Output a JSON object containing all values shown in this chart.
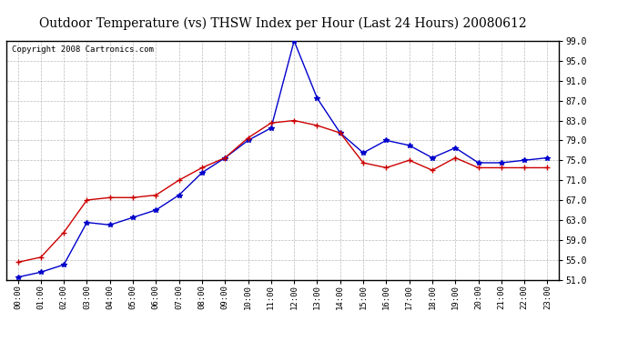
{
  "title": "Outdoor Temperature (vs) THSW Index per Hour (Last 24 Hours) 20080612",
  "copyright": "Copyright 2008 Cartronics.com",
  "hours": [
    "00:00",
    "01:00",
    "02:00",
    "03:00",
    "04:00",
    "05:00",
    "06:00",
    "07:00",
    "08:00",
    "09:00",
    "10:00",
    "11:00",
    "12:00",
    "13:00",
    "14:00",
    "15:00",
    "16:00",
    "17:00",
    "18:00",
    "19:00",
    "20:00",
    "21:00",
    "22:00",
    "23:00"
  ],
  "blue_data": [
    51.5,
    52.5,
    54.0,
    62.5,
    62.0,
    63.5,
    65.0,
    68.0,
    72.5,
    75.5,
    79.0,
    81.5,
    99.0,
    87.5,
    80.5,
    76.5,
    79.0,
    78.0,
    75.5,
    77.5,
    74.5,
    74.5,
    75.0,
    75.5
  ],
  "red_data": [
    54.5,
    55.5,
    60.5,
    67.0,
    67.5,
    67.5,
    68.0,
    71.0,
    73.5,
    75.5,
    79.5,
    82.5,
    83.0,
    82.0,
    80.5,
    74.5,
    73.5,
    75.0,
    73.0,
    75.5,
    73.5,
    73.5,
    73.5,
    73.5
  ],
  "ylim": [
    51.0,
    99.0
  ],
  "yticks": [
    51.0,
    55.0,
    59.0,
    63.0,
    67.0,
    71.0,
    75.0,
    79.0,
    83.0,
    87.0,
    91.0,
    95.0,
    99.0
  ],
  "blue_color": "#0000cc",
  "red_color": "#cc0000",
  "bg_color": "#ffffff",
  "grid_color": "#bbbbbb",
  "title_fontsize": 10,
  "copyright_fontsize": 6.5
}
